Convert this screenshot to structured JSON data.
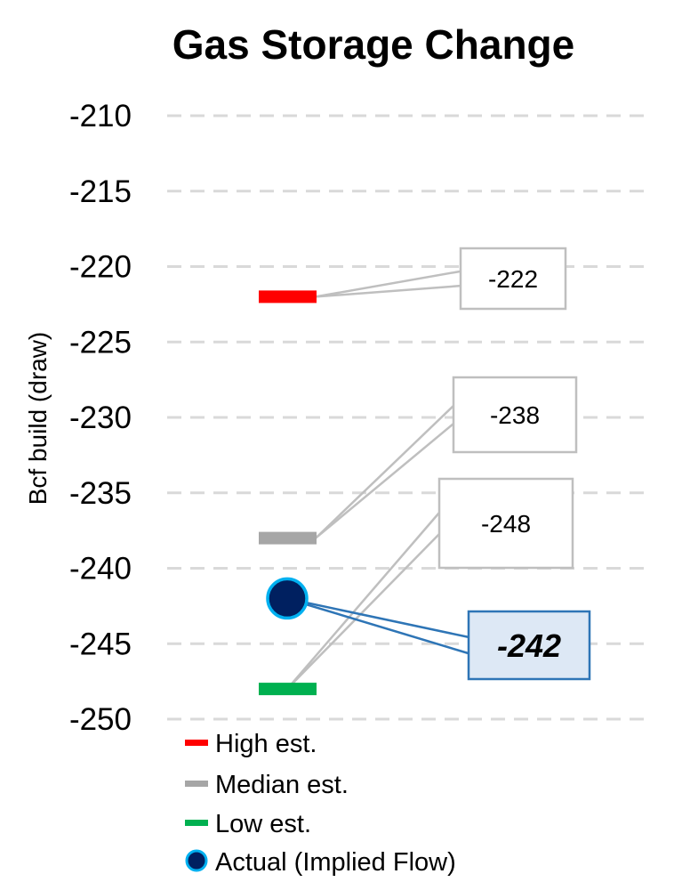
{
  "chart_data": {
    "type": "scatter",
    "title": "Gas Storage Change",
    "ylabel": "Bcf build (draw)",
    "xlabel": "",
    "ylim": [
      -250,
      -210
    ],
    "ytick_step": 5,
    "grid": true,
    "legend_position": "bottom-left",
    "series": [
      {
        "name": "High est.",
        "value": -222,
        "label": "-222",
        "marker": "dash",
        "color": "#ff0000"
      },
      {
        "name": "Median est.",
        "value": -238,
        "label": "-238",
        "marker": "dash",
        "color": "#a6a6a6"
      },
      {
        "name": "Low est.",
        "value": -248,
        "label": "-248",
        "marker": "dash",
        "color": "#00b050"
      },
      {
        "name": "Actual (Implied Flow)",
        "value": -242,
        "label": "-242",
        "marker": "circle",
        "color": "#002060",
        "edge_color": "#00b0f0",
        "callout_color": "#2e75b6",
        "callout_fill": "#dde8f5"
      }
    ]
  }
}
